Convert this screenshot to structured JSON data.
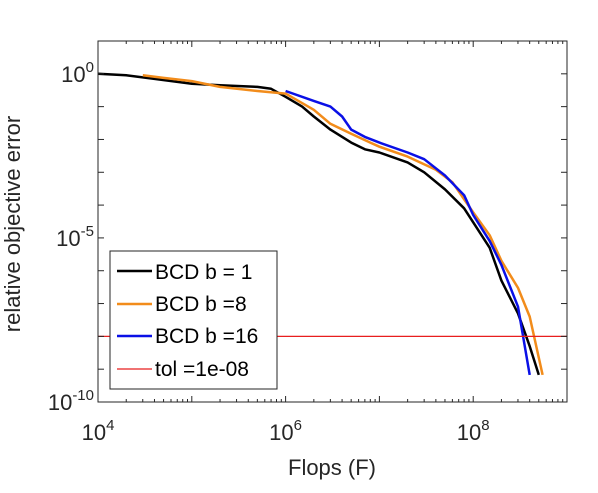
{
  "chart_data": {
    "type": "line",
    "title": "",
    "xlabel": "Flops (F)",
    "ylabel": "relative objective error",
    "xscale": "log",
    "yscale": "log",
    "xlim": [
      10000,
      1000000000
    ],
    "ylim": [
      1e-10,
      10
    ],
    "xticks": [
      {
        "value": 10000,
        "base": "10",
        "exp": "4"
      },
      {
        "value": 1000000,
        "base": "10",
        "exp": "6"
      },
      {
        "value": 100000000,
        "base": "10",
        "exp": "8"
      }
    ],
    "yticks": [
      {
        "value": 1,
        "base": "10",
        "exp": "0"
      },
      {
        "value": 1e-05,
        "base": "10",
        "exp": "-5"
      },
      {
        "value": 1e-10,
        "base": "10",
        "exp": "-10"
      }
    ],
    "grid": false,
    "legend_position": "bottom-left",
    "series": [
      {
        "name": "BCD b = 1",
        "color": "#000000",
        "x": [
          10000,
          20000,
          40000,
          100000,
          200000,
          500000,
          700000,
          1000000,
          1500000,
          2000000,
          3000000,
          5000000,
          7000000,
          10000000,
          20000000,
          30000000,
          50000000,
          80000000,
          100000000,
          150000000,
          200000000,
          300000000,
          400000000,
          500000000
        ],
        "y": [
          1,
          0.9,
          0.7,
          0.5,
          0.45,
          0.4,
          0.35,
          0.2,
          0.1,
          0.05,
          0.02,
          0.008,
          0.005,
          0.004,
          0.002,
          0.001,
          0.0003,
          8e-05,
          3e-05,
          5e-06,
          5e-07,
          5e-08,
          5e-09,
          6.7e-10
        ]
      },
      {
        "name": "BCD b =8",
        "color": "#f28c1b",
        "x": [
          30000,
          50000,
          100000,
          200000,
          500000,
          1000000,
          2000000,
          3000000,
          5000000,
          8000000,
          10000000,
          20000000,
          40000000,
          60000000,
          80000000,
          100000000,
          150000000,
          200000000,
          300000000,
          400000000,
          550000000
        ],
        "y": [
          0.9,
          0.75,
          0.6,
          0.4,
          0.3,
          0.25,
          0.08,
          0.03,
          0.015,
          0.008,
          0.006,
          0.003,
          0.0012,
          0.0005,
          0.00015,
          6e-05,
          1.2e-05,
          2e-06,
          3e-07,
          4e-08,
          6.7e-10
        ]
      },
      {
        "name": "BCD b =16",
        "color": "#0a10e6",
        "x": [
          1000000,
          2000000,
          3000000,
          4000000,
          5000000,
          7000000,
          10000000,
          20000000,
          30000000,
          50000000,
          80000000,
          100000000,
          150000000,
          200000000,
          300000000,
          400000000
        ],
        "y": [
          0.3,
          0.15,
          0.1,
          0.05,
          0.02,
          0.012,
          0.008,
          0.004,
          0.0025,
          0.0008,
          0.0002,
          5e-05,
          8e-06,
          1.5e-06,
          8e-08,
          6.7e-10
        ]
      }
    ],
    "reference_lines": [
      {
        "name": "tol =1e-08",
        "color": "#e81e1e",
        "y": 1e-08
      }
    ],
    "legend_labels": [
      "BCD b = 1",
      "BCD b =8",
      "BCD b =16",
      "tol =1e-08"
    ]
  }
}
